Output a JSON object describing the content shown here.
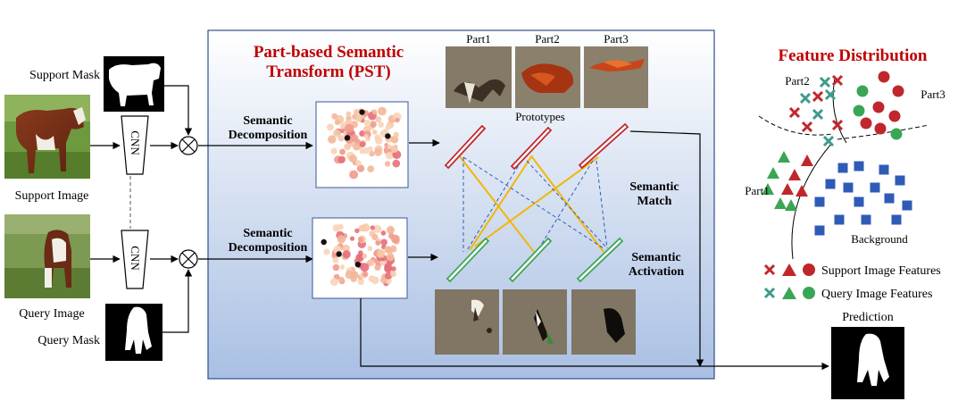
{
  "pst_title": [
    "Part-based Semantic",
    "Transform (PST)"
  ],
  "feature_title": "Feature Distribution",
  "support_image_label": "Support Image",
  "query_image_label": "Query Image",
  "support_mask_label": "Support Mask",
  "query_mask_label": "Query Mask",
  "cnn_label": "CNN",
  "semantic_decomposition_label": [
    "Semantic",
    "Decomposition"
  ],
  "parts": [
    "Part1",
    "Part2",
    "Part3"
  ],
  "prototypes_label": "Prototypes",
  "semantic_match_label": [
    "Semantic",
    "Match"
  ],
  "semantic_activation_label": [
    "Semantic",
    "Activation"
  ],
  "prediction_label": "Prediction",
  "clusters": {
    "part1": "Part1",
    "part2": "Part2",
    "part3": "Part3",
    "background": "Background"
  },
  "legend": {
    "support": "Support Image Features",
    "query": "Query Image Features"
  },
  "colors": {
    "title_red": "#c00000",
    "support_proto": "#c0272d",
    "query_proto": "#3aa655",
    "match_line": "#f2b705",
    "activation_line": "#2e5fb5",
    "marker_red": "#c0272d",
    "marker_teal": "#3e9b8a",
    "marker_green": "#3aa655",
    "background_square": "#2f5bb7"
  }
}
